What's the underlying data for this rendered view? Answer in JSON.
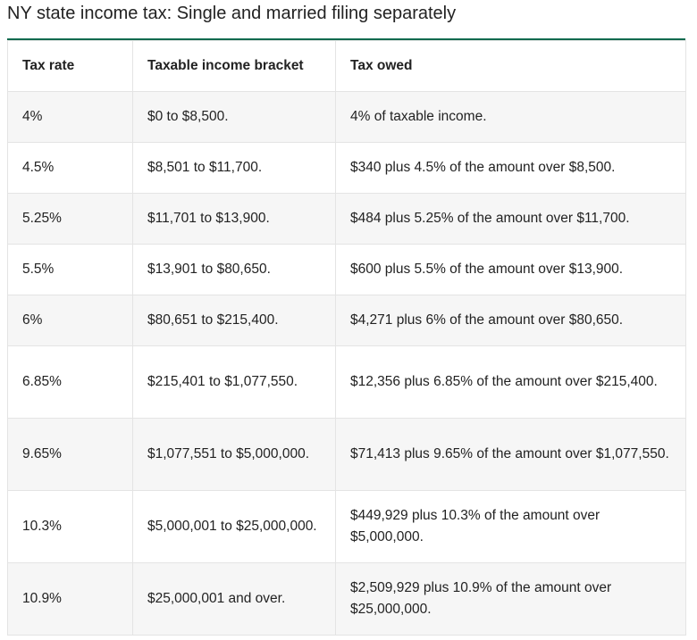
{
  "title": "NY state income tax: Single and married filing separately",
  "headers": {
    "rate": "Tax rate",
    "bracket": "Taxable income bracket",
    "owed": "Tax owed"
  },
  "rows": [
    {
      "rate": "4%",
      "bracket": "$0 to $8,500.",
      "owed": "4% of taxable income."
    },
    {
      "rate": "4.5%",
      "bracket": "$8,501 to $11,700.",
      "owed": "$340 plus 4.5% of the amount over $8,500."
    },
    {
      "rate": "5.25%",
      "bracket": "$11,701 to $13,900.",
      "owed": "$484 plus 5.25% of the amount over $11,700."
    },
    {
      "rate": "5.5%",
      "bracket": "$13,901 to $80,650.",
      "owed": "$600 plus 5.5% of the amount over $13,900."
    },
    {
      "rate": "6%",
      "bracket": "$80,651 to $215,400.",
      "owed": "$4,271 plus 6% of the amount over $80,650."
    },
    {
      "rate": "6.85%",
      "bracket": "$215,401 to $1,077,550.",
      "owed": "$12,356 plus 6.85% of the amount over $215,400."
    },
    {
      "rate": "9.65%",
      "bracket": "$1,077,551 to $5,000,000.",
      "owed": "$71,413 plus 9.65% of the amount over $1,077,550."
    },
    {
      "rate": "10.3%",
      "bracket": "$5,000,001 to $25,000,000.",
      "owed": "$449,929 plus 10.3% of the amount over $5,000,000."
    },
    {
      "rate": "10.9%",
      "bracket": "$25,000,001 and over.",
      "owed": "$2,509,929 plus 10.9% of the amount over $25,000,000."
    }
  ]
}
